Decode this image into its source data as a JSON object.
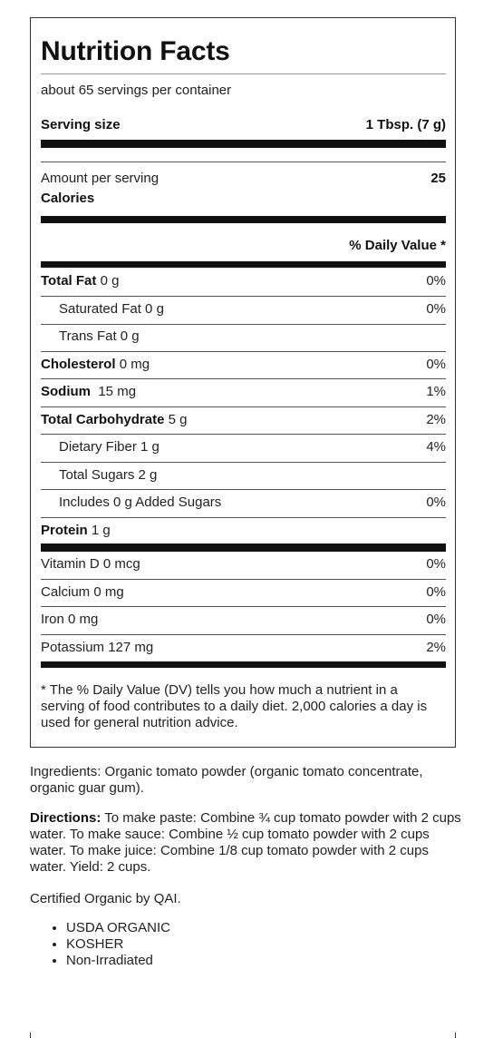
{
  "label": {
    "title": "Nutrition Facts",
    "servings": "about 65 servings per container",
    "serving_size_label": "Serving size",
    "serving_size_value": "1 Tbsp. (7 g)",
    "amount_per_serving": "Amount per serving",
    "calories_label": "Calories",
    "calories_value": "25",
    "dv_header": "% Daily Value *",
    "rows": [
      {
        "name": "Total Fat",
        "amount": "0 g",
        "dv": "0%"
      },
      {
        "name": "Saturated Fat 0 g",
        "dv": "0%"
      },
      {
        "name": "Trans Fat 0 g",
        "dv": ""
      },
      {
        "name": "Cholesterol",
        "amount": "0 mg",
        "dv": "0%"
      },
      {
        "name": "Sodium",
        "amount": "15 mg",
        "dv": "1%"
      },
      {
        "name": "Total Carbohydrate",
        "amount": "5 g",
        "dv": "2%"
      },
      {
        "name": "Dietary Fiber 1 g",
        "dv": "4%"
      },
      {
        "name": "Total Sugars 2 g",
        "dv": ""
      },
      {
        "name": "Includes 0 g Added Sugars",
        "dv": "0%"
      },
      {
        "name": "Protein",
        "amount": "1 g",
        "dv": ""
      }
    ],
    "vitamins": [
      {
        "name": "Vitamin D 0 mcg",
        "dv": "0%"
      },
      {
        "name": "Calcium 0 mg",
        "dv": "0%"
      },
      {
        "name": "Iron 0 mg",
        "dv": "0%"
      },
      {
        "name": "Potassium 127 mg",
        "dv": "2%"
      }
    ],
    "footnote": "* The % Daily Value (DV) tells you how much a nutrient in a serving of food contributes to a daily diet. 2,000 calories a day is used for general nutrition advice."
  },
  "ingredients": "Ingredients: Organic tomato powder (organic tomato concentrate, organic guar gum).",
  "directions": {
    "label": "Directions:",
    "text": " To make paste: Combine ¾ cup tomato powder with 2 cups water. To make sauce: Combine ½ cup tomato powder with 2 cups water. To make juice: Combine 1/8 cup tomato powder with 2 cups water. Yield: 2 cups."
  },
  "certification": "Certified Organic by QAI.",
  "badges": [
    "USDA ORGANIC",
    "KOSHER",
    "Non-Irradiated"
  ]
}
